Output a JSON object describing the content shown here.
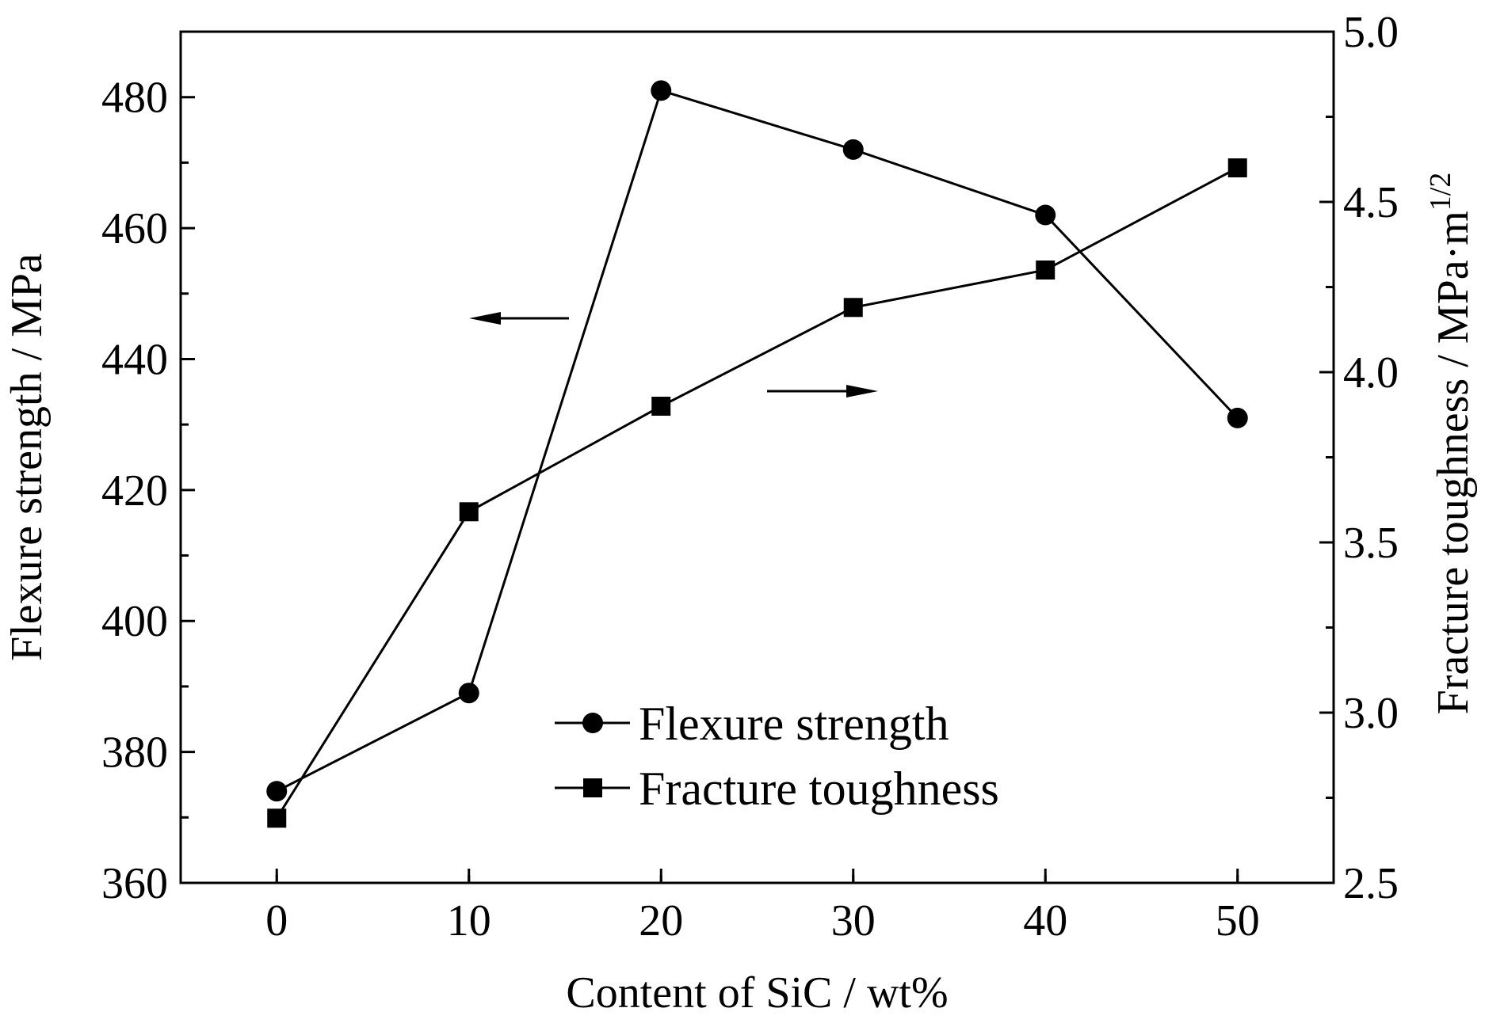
{
  "chart_data": {
    "type": "line",
    "title": "",
    "xlabel": "Content of SiC / wt%",
    "ylabel_left": "Flexure strength / MPa",
    "ylabel_right": "Fracture toughness / MPa·m",
    "ylabel_right_superscript": "1/2",
    "x": [
      0,
      10,
      20,
      30,
      40,
      50
    ],
    "xlim": [
      -5,
      55
    ],
    "ylim_left": [
      360,
      490
    ],
    "ylim_right": [
      2.5,
      5.0
    ],
    "x_ticks": [
      "0",
      "10",
      "20",
      "30",
      "40",
      "50"
    ],
    "y_left_ticks": [
      "360",
      "380",
      "400",
      "420",
      "440",
      "460",
      "480"
    ],
    "y_right_ticks": [
      "2.5",
      "3.0",
      "3.5",
      "4.0",
      "4.5",
      "5.0"
    ],
    "grid": false,
    "legend_position": "bottom-center",
    "series": [
      {
        "name": "Flexure strength",
        "axis": "left",
        "marker": "circle",
        "values": [
          374,
          389,
          481,
          472,
          462,
          431
        ]
      },
      {
        "name": "Fracture toughness",
        "axis": "right",
        "marker": "square",
        "values": [
          2.69,
          3.59,
          3.9,
          4.19,
          4.3,
          4.6
        ]
      }
    ],
    "annotations": [
      {
        "type": "arrow",
        "direction": "left",
        "refers_to": "Flexure strength"
      },
      {
        "type": "arrow",
        "direction": "right",
        "refers_to": "Fracture toughness"
      }
    ]
  }
}
